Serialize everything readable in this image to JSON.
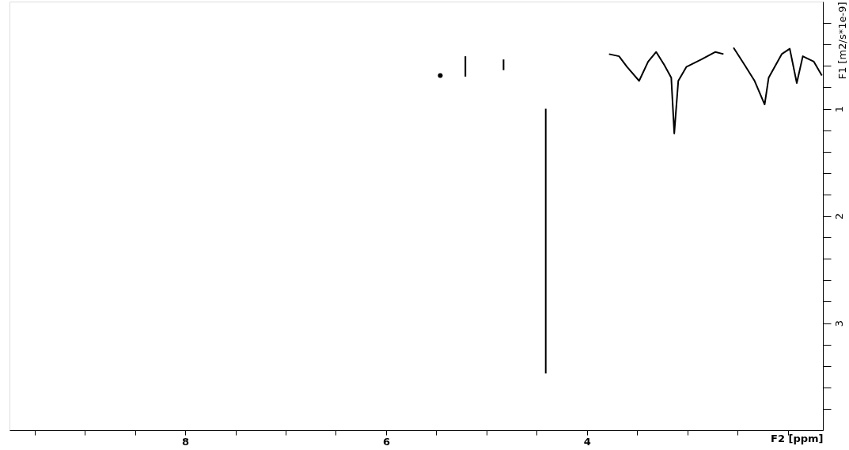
{
  "chart_data": {
    "type": "line",
    "xlabel": "F2 [ppm]",
    "ylabel": "F1 [m2/s*1e-9]",
    "xlim": [
      9.75,
      1.65
    ],
    "ylim": [
      4.0,
      0.0
    ],
    "xticks": [
      {
        "value": 9.5,
        "label": null
      },
      {
        "value": 9.0,
        "label": null
      },
      {
        "value": 8.5,
        "label": null
      },
      8,
      {
        "value": 7.5,
        "label": null
      },
      {
        "value": 7.0,
        "label": null
      },
      {
        "value": 6.5,
        "label": null
      },
      6,
      {
        "value": 5.5,
        "label": null
      },
      {
        "value": 5.0,
        "label": null
      },
      {
        "value": 4.5,
        "label": null
      },
      4,
      {
        "value": 3.5,
        "label": null
      },
      {
        "value": 3.0,
        "label": null
      },
      {
        "value": 2.5,
        "label": null
      },
      {
        "value": 2.0,
        "label": null
      }
    ],
    "yticks": [
      {
        "value": 0.2,
        "label": null
      },
      {
        "value": 0.4,
        "label": null
      },
      {
        "value": 0.6,
        "label": null
      },
      {
        "value": 0.8,
        "label": null
      },
      1,
      {
        "value": 1.2,
        "label": null
      },
      {
        "value": 1.4,
        "label": null
      },
      {
        "value": 1.6,
        "label": null
      },
      {
        "value": 1.8,
        "label": null
      },
      2,
      {
        "value": 2.2,
        "label": null
      },
      {
        "value": 2.4,
        "label": null
      },
      {
        "value": 2.6,
        "label": null
      },
      {
        "value": 2.8,
        "label": null
      },
      3,
      {
        "value": 3.2,
        "label": null
      },
      {
        "value": 3.4,
        "label": null
      },
      {
        "value": 3.6,
        "label": null
      },
      {
        "value": 3.8,
        "label": null
      }
    ],
    "grid": false,
    "marker": "none",
    "line_style": "solid",
    "series": [
      {
        "color": "#000000",
        "x": [
          3.78,
          3.68,
          3.6,
          3.48,
          3.39,
          3.31,
          3.23,
          3.16,
          3.13,
          3.09,
          3.01,
          2.86,
          2.72,
          2.64
        ],
        "values": [
          0.49,
          0.51,
          0.61,
          0.74,
          0.56,
          0.47,
          0.59,
          0.71,
          1.23,
          0.74,
          0.61,
          0.54,
          0.47,
          0.49
        ]
      },
      {
        "color": "#000000",
        "x": [
          2.54,
          2.43,
          2.33,
          2.23,
          2.19,
          2.06,
          1.98,
          1.91,
          1.85,
          1.74,
          1.66
        ],
        "values": [
          0.43,
          0.59,
          0.74,
          0.96,
          0.71,
          0.49,
          0.44,
          0.76,
          0.51,
          0.56,
          0.69
        ]
      },
      {
        "color": "#000000",
        "x": [
          4.41,
          4.41
        ],
        "values": [
          1.0,
          3.47
        ]
      },
      {
        "color": "#000000",
        "x": [
          5.21,
          5.21
        ],
        "values": [
          0.51,
          0.7
        ]
      },
      {
        "color": "#000000",
        "x": [
          4.83,
          4.83
        ],
        "values": [
          0.54,
          0.64
        ]
      },
      {
        "type": "scatter",
        "color": "#000000",
        "x": [
          5.46
        ],
        "values": [
          0.69
        ]
      }
    ]
  }
}
